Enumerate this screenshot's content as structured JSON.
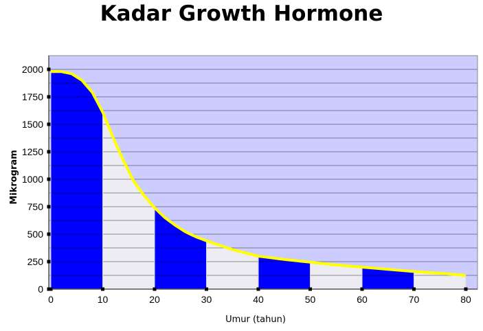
{
  "chart_data": {
    "type": "area",
    "title": "Kadar Growth Hormone",
    "xlabel": "Umur (tahun)",
    "ylabel": "Mikrogram",
    "xlim": [
      0,
      80
    ],
    "ylim": [
      0,
      2000
    ],
    "x_ticks": [
      0,
      10,
      20,
      30,
      40,
      50,
      60,
      70,
      80
    ],
    "y_ticks": [
      0,
      250,
      500,
      750,
      1000,
      1250,
      1500,
      1750,
      2000
    ],
    "grid": true,
    "legend": "none",
    "curve": {
      "x": [
        0,
        2,
        4,
        6,
        8,
        10,
        12,
        14,
        16,
        18,
        20,
        22,
        24,
        26,
        28,
        30,
        35,
        40,
        45,
        50,
        55,
        60,
        65,
        70,
        75,
        80
      ],
      "y": [
        1980,
        1980,
        1960,
        1900,
        1790,
        1610,
        1380,
        1170,
        980,
        850,
        740,
        650,
        580,
        520,
        475,
        440,
        360,
        300,
        270,
        245,
        220,
        200,
        180,
        160,
        145,
        125
      ]
    },
    "bands": [
      {
        "x_start": 0,
        "x_end": 10,
        "fill": "#0000ff"
      },
      {
        "x_start": 10,
        "x_end": 20,
        "fill": "#ececf2"
      },
      {
        "x_start": 20,
        "x_end": 30,
        "fill": "#0000ff"
      },
      {
        "x_start": 30,
        "x_end": 40,
        "fill": "#ececf2"
      },
      {
        "x_start": 40,
        "x_end": 50,
        "fill": "#0000ff"
      },
      {
        "x_start": 50,
        "x_end": 60,
        "fill": "#ececf2"
      },
      {
        "x_start": 60,
        "x_end": 70,
        "fill": "#0000ff"
      },
      {
        "x_start": 70,
        "x_end": 80,
        "fill": "#ececf2"
      }
    ],
    "colors": {
      "plot_background": "#cccdfe",
      "curve": "#ffff00",
      "grid": "#000000"
    }
  }
}
